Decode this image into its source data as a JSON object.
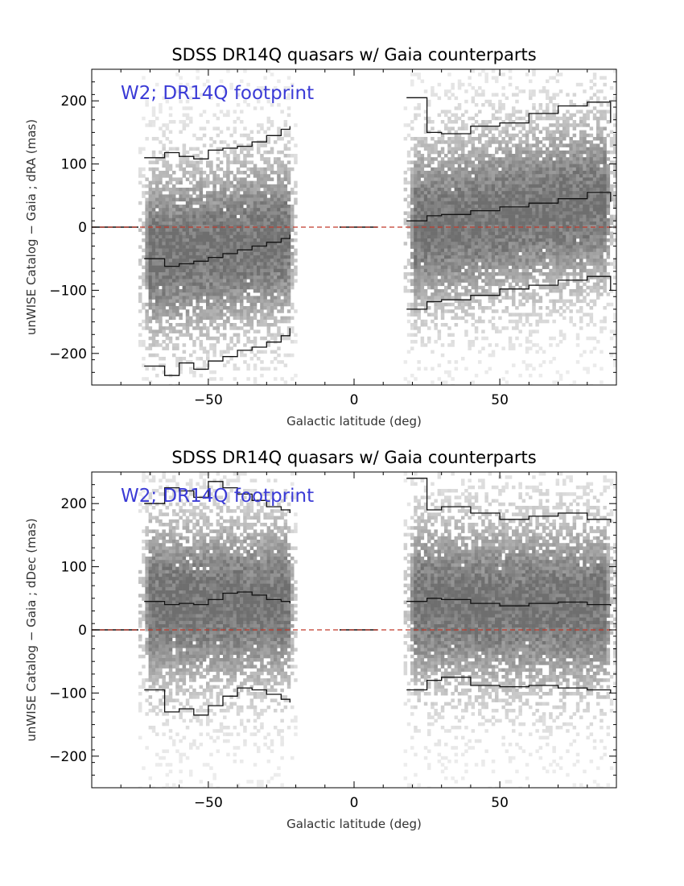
{
  "chart_data": [
    {
      "type": "heatmap",
      "title": "SDSS DR14Q quasars w/ Gaia counterparts",
      "xlabel": "Galactic latitude (deg)",
      "ylabel": "unWISE Catalog − Gaia ; dRA (mas)",
      "annotation": "W2; DR14Q footprint",
      "xlim": [
        -90,
        90
      ],
      "ylim": [
        -250,
        250
      ],
      "x_ticks": [
        -50,
        0,
        50
      ],
      "y_ticks": [
        -200,
        -100,
        0,
        100,
        200
      ],
      "reference_line": {
        "y": 0,
        "color": "#c0392b",
        "style": "dashed"
      },
      "density_regions": [
        {
          "x_range": [
            -74,
            -20
          ],
          "y_center_left": -45,
          "y_center_right": -15,
          "peak_gray": "#6e6e6e"
        },
        {
          "x_range": [
            17,
            89
          ],
          "y_center_left": 0,
          "y_center_right": 45,
          "peak_gray": "#6e6e6e"
        }
      ],
      "series": [
        {
          "name": "upper",
          "x": [
            -72,
            -65,
            -60,
            -55,
            -50,
            -45,
            -40,
            -35,
            -30,
            -25,
            -22,
            18,
            25,
            30,
            40,
            50,
            60,
            70,
            80,
            88
          ],
          "y": [
            110,
            118,
            112,
            108,
            122,
            125,
            128,
            135,
            145,
            155,
            160,
            205,
            150,
            148,
            160,
            165,
            180,
            192,
            198,
            165
          ]
        },
        {
          "name": "median",
          "x": [
            -72,
            -65,
            -60,
            -55,
            -50,
            -45,
            -40,
            -35,
            -30,
            -25,
            -22,
            18,
            25,
            30,
            40,
            50,
            60,
            70,
            80,
            88
          ],
          "y": [
            -50,
            -62,
            -58,
            -54,
            -48,
            -42,
            -36,
            -30,
            -24,
            -18,
            -12,
            10,
            18,
            20,
            26,
            32,
            38,
            45,
            55,
            40
          ]
        },
        {
          "name": "lower",
          "x": [
            -72,
            -65,
            -60,
            -55,
            -50,
            -45,
            -40,
            -35,
            -30,
            -25,
            -22,
            18,
            25,
            30,
            40,
            50,
            60,
            70,
            80,
            88
          ],
          "y": [
            -220,
            -235,
            -215,
            -225,
            -212,
            -205,
            -195,
            -190,
            -182,
            -172,
            -160,
            -130,
            -118,
            -115,
            -108,
            -98,
            -92,
            -84,
            -78,
            -100
          ]
        }
      ]
    },
    {
      "type": "heatmap",
      "title": "SDSS DR14Q quasars w/ Gaia counterparts",
      "xlabel": "Galactic latitude (deg)",
      "ylabel": "unWISE Catalog − Gaia ; dDec (mas)",
      "annotation": "W2; DR14Q footprint",
      "xlim": [
        -90,
        90
      ],
      "ylim": [
        -250,
        250
      ],
      "x_ticks": [
        -50,
        0,
        50
      ],
      "y_ticks": [
        -200,
        -100,
        0,
        100,
        200
      ],
      "reference_line": {
        "y": 0,
        "color": "#c0392b",
        "style": "dashed"
      },
      "density_regions": [
        {
          "x_range": [
            -74,
            -20
          ],
          "y_center_left": 45,
          "y_center_right": 45,
          "peak_gray": "#6e6e6e"
        },
        {
          "x_range": [
            17,
            89
          ],
          "y_center_left": 45,
          "y_center_right": 40,
          "peak_gray": "#6e6e6e"
        }
      ],
      "series": [
        {
          "name": "upper",
          "x": [
            -72,
            -65,
            -60,
            -55,
            -50,
            -45,
            -40,
            -35,
            -30,
            -25,
            -22,
            18,
            25,
            30,
            40,
            50,
            60,
            70,
            80,
            88
          ],
          "y": [
            200,
            225,
            220,
            210,
            235,
            225,
            215,
            205,
            195,
            190,
            185,
            240,
            190,
            195,
            185,
            175,
            180,
            185,
            175,
            170
          ]
        },
        {
          "name": "median",
          "x": [
            -72,
            -65,
            -60,
            -55,
            -50,
            -45,
            -40,
            -35,
            -30,
            -25,
            -22,
            18,
            25,
            30,
            40,
            50,
            60,
            70,
            80,
            88
          ],
          "y": [
            45,
            40,
            42,
            40,
            48,
            58,
            60,
            55,
            48,
            45,
            42,
            45,
            50,
            48,
            42,
            38,
            42,
            44,
            40,
            38
          ]
        },
        {
          "name": "lower",
          "x": [
            -72,
            -65,
            -60,
            -55,
            -50,
            -45,
            -40,
            -35,
            -30,
            -25,
            -22,
            18,
            25,
            30,
            40,
            50,
            60,
            70,
            80,
            88
          ],
          "y": [
            -95,
            -130,
            -125,
            -135,
            -120,
            -105,
            -92,
            -95,
            -102,
            -110,
            -115,
            -95,
            -80,
            -75,
            -88,
            -90,
            -88,
            -92,
            -95,
            -100
          ]
        }
      ]
    }
  ]
}
